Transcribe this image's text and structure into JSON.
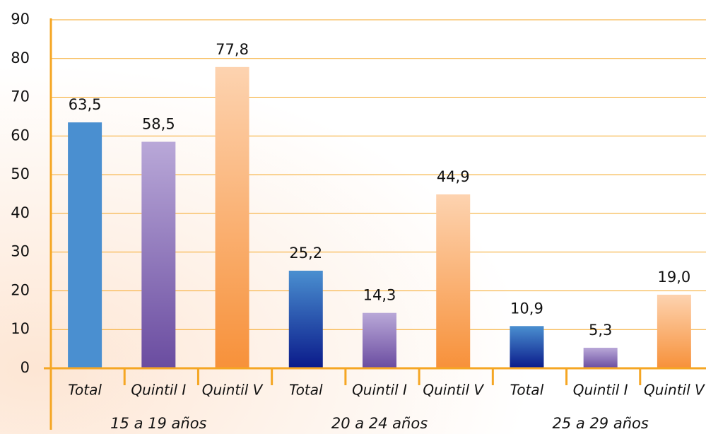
{
  "chart_data": {
    "type": "bar",
    "categories": [
      "Total",
      "Quintil I",
      "Quintil V",
      "Total",
      "Quintil I",
      "Quintil V",
      "Total",
      "Quintil I",
      "Quintil V"
    ],
    "groups": [
      "15 a 19 años",
      "20 a 24 años",
      "25 a 29 años"
    ],
    "values": [
      63.5,
      58.5,
      77.8,
      25.2,
      14.3,
      44.9,
      10.9,
      5.3,
      19.0
    ],
    "value_labels": [
      "63,5",
      "58,5",
      "77,8",
      "25,2",
      "14,3",
      "44,9",
      "10,9",
      "5,3",
      "19,0"
    ],
    "colors": [
      [
        "#4a8fd0",
        "#4a8fd0"
      ],
      [
        "#b9a8d8",
        "#6a4ca0"
      ],
      [
        "#fdd3b0",
        "#f7913a"
      ],
      [
        "#4a8fd0",
        "#0a1a8a"
      ],
      [
        "#b9a8d8",
        "#6a4ca0"
      ],
      [
        "#fdd3b0",
        "#f7913a"
      ],
      [
        "#4a8fd0",
        "#0a1a8a"
      ],
      [
        "#b9a8d8",
        "#6a4ca0"
      ],
      [
        "#fdd3b0",
        "#f7913a"
      ]
    ],
    "axis_color": "#f5a623",
    "ylim": [
      0,
      90
    ],
    "yticks": [
      0,
      10,
      20,
      30,
      40,
      50,
      60,
      70,
      80,
      90
    ],
    "grid": true
  }
}
